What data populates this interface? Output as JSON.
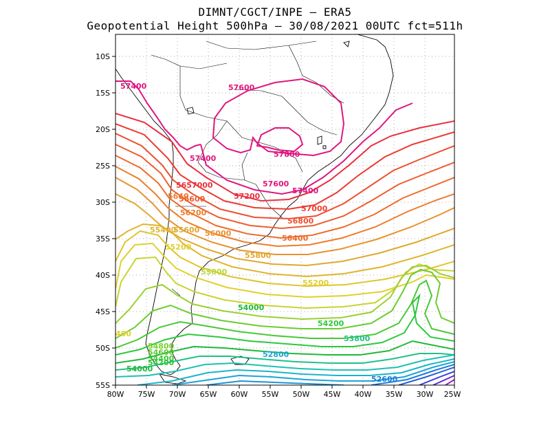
{
  "title_line1": "DIMNT/CGCT/INPE –  ERA5",
  "title_line2": "Geopotential Height 500hPa –  30/08/2021 00UTC fct=511h",
  "map": {
    "lon_range": [
      -80,
      -25
    ],
    "lat_range": [
      -55,
      -7
    ],
    "grid": "dotted, every 5 degrees",
    "lon_ticks": [
      "80W",
      "75W",
      "70W",
      "65W",
      "60W",
      "55W",
      "50W",
      "45W",
      "40W",
      "35W",
      "30W",
      "25W"
    ],
    "lat_ticks": [
      "10S",
      "15S",
      "20S",
      "25S",
      "30S",
      "35S",
      "40S",
      "45S",
      "50S",
      "55S"
    ]
  },
  "contour_labels": [
    {
      "text": "57400",
      "color": "#e0157e"
    },
    {
      "text": "57600",
      "color": "#e0157e"
    },
    {
      "text": "57800",
      "color": "#e0157e"
    },
    {
      "text": "57400",
      "color": "#e0157e"
    },
    {
      "text": "57600",
      "color": "#e0157e"
    },
    {
      "text": "57400",
      "color": "#e0157e"
    },
    {
      "text": "57200",
      "color": "#e8303c"
    },
    {
      "text": "57000",
      "color": "#ee3c30"
    },
    {
      "text": "56800",
      "color": "#ee5030"
    },
    {
      "text": "56400",
      "color": "#ee6a2a"
    },
    {
      "text": "5657000",
      "color": "#e8303c"
    },
    {
      "text": "56600",
      "color": "#ee5a30"
    },
    {
      "text": "56200",
      "color": "#ee7a2a"
    },
    {
      "text": "5640",
      "color": "#ee7a2a"
    },
    {
      "text": "56000",
      "color": "#e8922c"
    },
    {
      "text": "55800",
      "color": "#e0a82c"
    },
    {
      "text": "55400",
      "color": "#e0b42c"
    },
    {
      "text": "55600",
      "color": "#e0a82c"
    },
    {
      "text": "55200",
      "color": "#e0d02c"
    },
    {
      "text": "55200",
      "color": "#e0d02c"
    },
    {
      "text": "55000",
      "color": "#b8d830"
    },
    {
      "text": "54000",
      "color": "#1fb83a"
    },
    {
      "text": "54200",
      "color": "#2cc83a"
    },
    {
      "text": "53800",
      "color": "#1fc08a"
    },
    {
      "text": "52800",
      "color": "#1aa4d8"
    },
    {
      "text": "52600",
      "color": "#1a7ed8"
    },
    {
      "text": "54800",
      "color": "#7ad030"
    },
    {
      "text": "54600",
      "color": "#5acc30"
    },
    {
      "text": "54400",
      "color": "#40c834"
    },
    {
      "text": "54200",
      "color": "#2cc83a"
    },
    {
      "text": "54000",
      "color": "#1fb83a"
    },
    {
      "text": "400",
      "color": "#e0d02c"
    }
  ]
}
